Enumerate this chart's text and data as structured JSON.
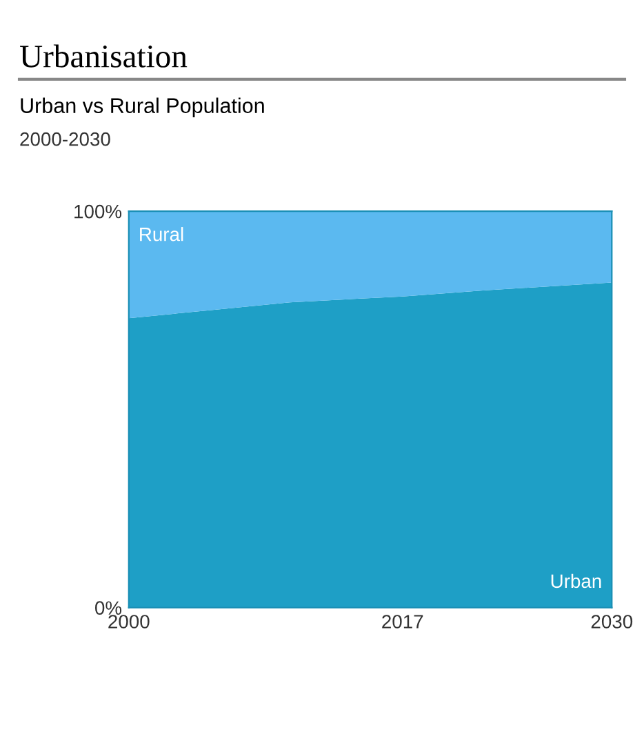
{
  "chart_data": {
    "type": "area",
    "stacked": true,
    "title": "Urbanisation",
    "subtitle": "Urban vs Rural Population",
    "annotations": [
      "2000-2030"
    ],
    "x": [
      2000,
      2005,
      2010,
      2017,
      2022,
      2030
    ],
    "series": [
      {
        "name": "Urban",
        "color": "#1e9fc6",
        "values": [
          73,
          75,
          77,
          78.5,
          80,
          82
        ]
      },
      {
        "name": "Rural",
        "color": "#5bb9f0",
        "values": [
          27,
          25,
          23,
          21.5,
          20,
          18
        ]
      }
    ],
    "xlim": [
      2000,
      2030
    ],
    "xticks": [
      2000,
      2017,
      2030
    ],
    "ylim": [
      0,
      100
    ],
    "yticks": [
      {
        "value": 0,
        "label": "0%"
      },
      {
        "value": 100,
        "label": "100%"
      }
    ],
    "grid": false,
    "legend": false
  }
}
